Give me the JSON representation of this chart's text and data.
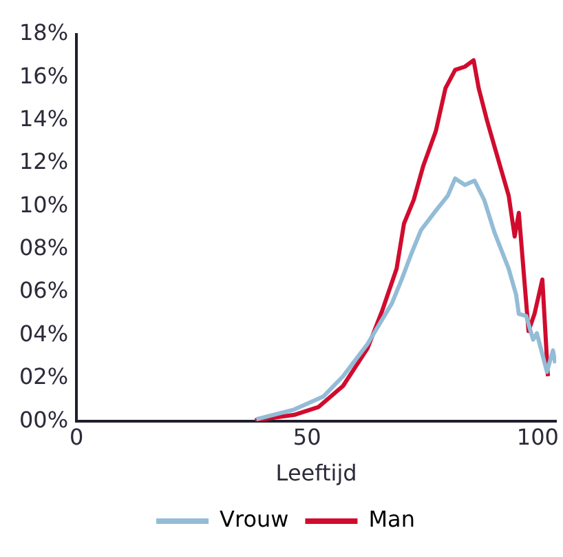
{
  "chart_data": {
    "type": "line",
    "xlabel": "Leeftijd",
    "xlim": [
      0,
      104
    ],
    "xticks": [
      0,
      50,
      100
    ],
    "ylim": [
      0,
      18
    ],
    "yticks": [
      {
        "value": 0,
        "label": "00%"
      },
      {
        "value": 2,
        "label": "02%"
      },
      {
        "value": 4,
        "label": "04%"
      },
      {
        "value": 6,
        "label": "06%"
      },
      {
        "value": 8,
        "label": "08%"
      },
      {
        "value": 10,
        "label": "10%"
      },
      {
        "value": 12,
        "label": "12%"
      },
      {
        "value": 14,
        "label": "14%"
      },
      {
        "value": 16,
        "label": "16%"
      },
      {
        "value": 18,
        "label": "18%"
      }
    ],
    "grid": false,
    "legend": "bottom",
    "marker": "none",
    "line_style": "solid",
    "series": [
      {
        "name": "Vrouw",
        "color": "#93bcd6",
        "x": [
          39,
          47.2,
          53.5,
          57.8,
          63.1,
          68.4,
          70.5,
          72.6,
          74.7,
          77.9,
          80.5,
          82.1,
          84.2,
          86.3,
          88.4,
          90.6,
          93.7,
          95.3,
          95.9,
          97.5,
          99,
          99.8,
          102,
          103.3,
          103.8
        ],
        "values": [
          0.1,
          0.55,
          1.15,
          2.1,
          3.6,
          5.5,
          6.6,
          7.8,
          8.9,
          9.8,
          10.5,
          11.3,
          11,
          11.2,
          10.3,
          8.8,
          7.1,
          5.9,
          5,
          4.9,
          3.8,
          4.1,
          2.3,
          3.3,
          2.7
        ]
      },
      {
        "name": "Man",
        "color": "#d00c2e",
        "x": [
          38.7,
          47.2,
          52.5,
          57.8,
          63.1,
          66.2,
          69.4,
          71,
          73.1,
          75.2,
          77.9,
          80,
          82.1,
          84.2,
          86.1,
          87.2,
          89,
          90.6,
          93.7,
          95,
          95.9,
          98,
          99.3,
          101,
          102.2
        ],
        "values": [
          0.05,
          0.3,
          0.67,
          1.65,
          3.4,
          5.1,
          7.1,
          9.2,
          10.3,
          11.9,
          13.5,
          15.5,
          16.35,
          16.5,
          16.8,
          15.5,
          14,
          12.8,
          10.5,
          8.6,
          9.7,
          4.2,
          5,
          6.6,
          2.1
        ]
      }
    ]
  }
}
